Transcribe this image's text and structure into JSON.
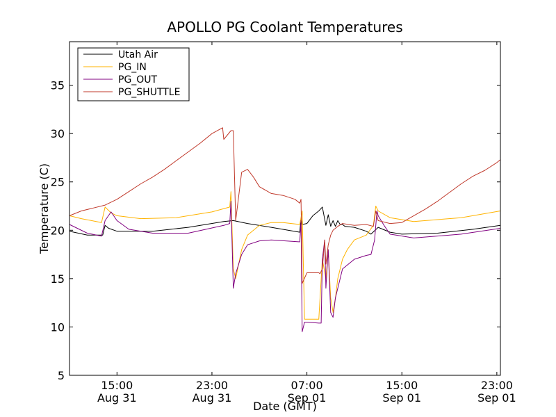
{
  "chart_data": {
    "type": "line",
    "title": "APOLLO PG Coolant Temperatures",
    "xlabel": "Date (GMT)",
    "ylabel": "Temperature (C)",
    "x_units": "hours since Aug 31 00:00 GMT",
    "xlim": [
      11,
      47.3
    ],
    "ylim": [
      5,
      39.5
    ],
    "yticks": [
      5,
      10,
      15,
      20,
      25,
      30,
      35
    ],
    "xticks": [
      {
        "value": 15,
        "line1": "15:00",
        "line2": "Aug 31"
      },
      {
        "value": 23,
        "line1": "23:00",
        "line2": "Aug 31"
      },
      {
        "value": 31,
        "line1": "07:00",
        "line2": "Sep 01"
      },
      {
        "value": 39,
        "line1": "15:00",
        "line2": "Sep 01"
      },
      {
        "value": 47,
        "line1": "23:00",
        "line2": "Sep 01"
      }
    ],
    "legend_position": "top-left",
    "series": [
      {
        "name": "Utah Air",
        "color": "#000000",
        "x": [
          11.0,
          12.5,
          13.8,
          14.0,
          14.3,
          15.0,
          18.0,
          21.0,
          24.0,
          24.8,
          26.0,
          28.0,
          30.4,
          30.5,
          30.6,
          31.0,
          31.5,
          32.0,
          32.3,
          32.6,
          32.8,
          33.0,
          33.2,
          33.4,
          33.6,
          33.8,
          34.0,
          34.2,
          35.0,
          36.0,
          36.4,
          37.0,
          38.0,
          39.0,
          42.0,
          45.0,
          47.3
        ],
        "y": [
          19.9,
          19.5,
          19.5,
          20.5,
          20.2,
          19.9,
          19.9,
          20.3,
          20.9,
          21.0,
          20.7,
          20.3,
          19.8,
          21.2,
          20.6,
          20.7,
          21.5,
          22.0,
          22.4,
          20.5,
          21.6,
          20.4,
          21.0,
          20.4,
          21.0,
          20.6,
          20.6,
          20.4,
          20.3,
          19.9,
          19.6,
          20.3,
          19.8,
          19.6,
          19.7,
          20.1,
          20.5
        ]
      },
      {
        "name": "PG_IN",
        "color": "#ffb300",
        "x": [
          11.0,
          12.0,
          13.7,
          14.0,
          14.5,
          15.0,
          17.0,
          20.0,
          23.0,
          24.5,
          24.6,
          24.8,
          25.0,
          25.5,
          26.0,
          27.0,
          28.0,
          29.0,
          30.4,
          30.6,
          30.8,
          31.0,
          32.0,
          32.3,
          32.6,
          32.8,
          33.0,
          33.2,
          33.4,
          33.6,
          33.8,
          34.0,
          34.4,
          35.0,
          36.0,
          36.6,
          36.8,
          37.0,
          38.0,
          40.0,
          44.0,
          47.3
        ],
        "y": [
          21.5,
          21.2,
          20.8,
          22.4,
          21.8,
          21.5,
          21.2,
          21.3,
          21.9,
          22.4,
          24.0,
          16.0,
          15.0,
          18.0,
          19.5,
          20.5,
          20.8,
          20.8,
          20.6,
          22.0,
          10.8,
          10.8,
          10.8,
          17.0,
          15.0,
          18.0,
          13.0,
          11.5,
          13.0,
          15.0,
          16.0,
          17.0,
          18.0,
          19.0,
          19.5,
          20.5,
          22.5,
          22.0,
          21.3,
          20.9,
          21.3,
          22.0
        ]
      },
      {
        "name": "PG_OUT",
        "color": "#800080",
        "x": [
          11.0,
          12.5,
          13.7,
          14.0,
          14.5,
          15.0,
          16.0,
          18.0,
          21.0,
          24.0,
          24.5,
          24.6,
          24.8,
          25.0,
          25.5,
          26.0,
          27.0,
          28.0,
          30.4,
          30.5,
          30.6,
          30.8,
          31.0,
          32.0,
          32.2,
          32.3,
          32.5,
          32.6,
          32.8,
          33.0,
          33.2,
          33.4,
          33.6,
          33.8,
          34.0,
          35.0,
          36.0,
          36.4,
          36.7,
          36.9,
          37.0,
          37.5,
          38.0,
          40.0,
          44.0,
          47.3
        ],
        "y": [
          20.6,
          19.7,
          19.4,
          21.0,
          21.9,
          21.0,
          20.1,
          19.7,
          19.7,
          20.5,
          20.7,
          23.0,
          14.0,
          15.5,
          17.5,
          18.5,
          18.9,
          19.0,
          18.8,
          21.0,
          9.5,
          10.5,
          10.5,
          10.4,
          10.4,
          17.0,
          19.0,
          14.0,
          18.0,
          11.5,
          11.0,
          13.0,
          14.0,
          15.0,
          16.0,
          17.0,
          17.4,
          17.5,
          19.0,
          22.0,
          21.5,
          20.5,
          19.6,
          19.2,
          19.6,
          20.2
        ]
      },
      {
        "name": "PG_SHUTTLE",
        "color": "#c0392b",
        "x": [
          11.0,
          12.0,
          13.0,
          14.0,
          15.0,
          16.0,
          17.0,
          18.0,
          19.0,
          20.0,
          21.0,
          22.0,
          23.0,
          23.9,
          24.0,
          24.6,
          24.8,
          25.0,
          25.5,
          26.0,
          26.5,
          27.0,
          28.0,
          29.0,
          30.0,
          30.4,
          30.5,
          30.6,
          31.0,
          32.0,
          32.1,
          32.3,
          32.5,
          32.6,
          32.8,
          33.0,
          33.2,
          33.6,
          34.0,
          35.0,
          36.0,
          36.6,
          36.8,
          37.0,
          38.0,
          39.0,
          40.0,
          41.0,
          42.0,
          43.0,
          44.0,
          45.0,
          46.0,
          47.0,
          47.3
        ],
        "y": [
          21.5,
          22.0,
          22.3,
          22.6,
          23.2,
          24.0,
          24.8,
          25.5,
          26.3,
          27.2,
          28.1,
          29.0,
          30.0,
          30.6,
          29.4,
          30.3,
          30.3,
          21.0,
          26.0,
          26.3,
          25.5,
          24.5,
          23.8,
          23.6,
          23.2,
          22.8,
          23.2,
          14.5,
          15.6,
          15.6,
          15.5,
          16.0,
          19.0,
          16.5,
          18.5,
          19.5,
          20.0,
          20.4,
          20.7,
          20.5,
          20.6,
          20.4,
          22.0,
          21.0,
          20.7,
          20.8,
          21.5,
          22.2,
          23.0,
          23.9,
          24.8,
          25.6,
          26.2,
          27.0,
          27.3
        ]
      }
    ]
  }
}
